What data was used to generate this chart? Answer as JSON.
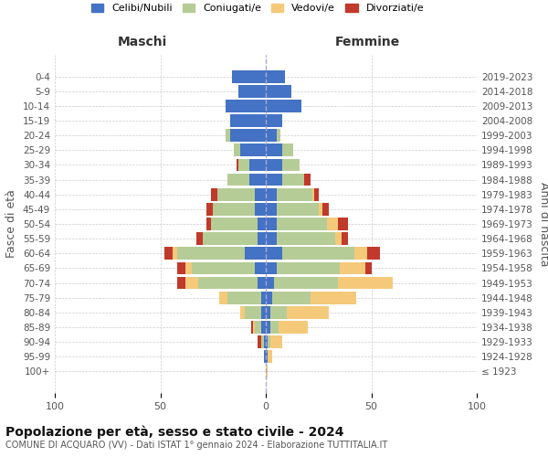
{
  "age_groups": [
    "100+",
    "95-99",
    "90-94",
    "85-89",
    "80-84",
    "75-79",
    "70-74",
    "65-69",
    "60-64",
    "55-59",
    "50-54",
    "45-49",
    "40-44",
    "35-39",
    "30-34",
    "25-29",
    "20-24",
    "15-19",
    "10-14",
    "5-9",
    "0-4"
  ],
  "birth_years": [
    "≤ 1923",
    "1924-1928",
    "1929-1933",
    "1934-1938",
    "1939-1943",
    "1944-1948",
    "1949-1953",
    "1954-1958",
    "1959-1963",
    "1964-1968",
    "1969-1973",
    "1974-1978",
    "1979-1983",
    "1984-1988",
    "1989-1993",
    "1994-1998",
    "1999-2003",
    "2004-2008",
    "2009-2013",
    "2014-2018",
    "2019-2023"
  ],
  "colors": {
    "celibi": "#4472c4",
    "coniugati": "#b5cc96",
    "vedovi": "#f5c97a",
    "divorziati": "#c0392b"
  },
  "legend_labels": [
    "Celibi/Nubili",
    "Coniugati/e",
    "Vedovi/e",
    "Divorziati/e"
  ],
  "maschi": {
    "celibi": [
      0,
      1,
      1,
      2,
      2,
      2,
      4,
      5,
      10,
      4,
      4,
      5,
      5,
      8,
      8,
      12,
      17,
      17,
      19,
      13,
      16
    ],
    "coniugati": [
      0,
      0,
      1,
      3,
      8,
      16,
      28,
      30,
      32,
      26,
      22,
      20,
      18,
      10,
      5,
      3,
      2,
      0,
      0,
      0,
      0
    ],
    "vedovi": [
      0,
      0,
      0,
      1,
      2,
      4,
      6,
      3,
      2,
      0,
      0,
      0,
      0,
      0,
      0,
      0,
      0,
      0,
      0,
      0,
      0
    ],
    "divorziati": [
      0,
      0,
      2,
      1,
      0,
      0,
      4,
      4,
      4,
      3,
      2,
      3,
      3,
      0,
      1,
      0,
      0,
      0,
      0,
      0,
      0
    ]
  },
  "femmine": {
    "nubili": [
      0,
      1,
      1,
      2,
      2,
      3,
      4,
      5,
      8,
      5,
      5,
      5,
      5,
      8,
      8,
      8,
      5,
      8,
      17,
      12,
      9
    ],
    "coniugate": [
      0,
      0,
      1,
      4,
      8,
      18,
      30,
      30,
      34,
      28,
      24,
      20,
      17,
      10,
      8,
      5,
      2,
      0,
      0,
      0,
      0
    ],
    "vedove": [
      1,
      2,
      6,
      14,
      20,
      22,
      26,
      12,
      6,
      3,
      5,
      2,
      1,
      0,
      0,
      0,
      0,
      0,
      0,
      0,
      0
    ],
    "divorziate": [
      0,
      0,
      0,
      0,
      0,
      0,
      0,
      3,
      6,
      3,
      5,
      3,
      2,
      3,
      0,
      0,
      0,
      0,
      0,
      0,
      0
    ]
  },
  "title": "Popolazione per età, sesso e stato civile - 2024",
  "subtitle": "COMUNE DI ACQUARO (VV) - Dati ISTAT 1° gennaio 2024 - Elaborazione TUTTITALIA.IT",
  "xlabel_left": "Maschi",
  "xlabel_right": "Femmine",
  "ylabel_left": "Fasce di età",
  "ylabel_right": "Anni di nascita",
  "xlim": 100,
  "background_color": "#ffffff"
}
